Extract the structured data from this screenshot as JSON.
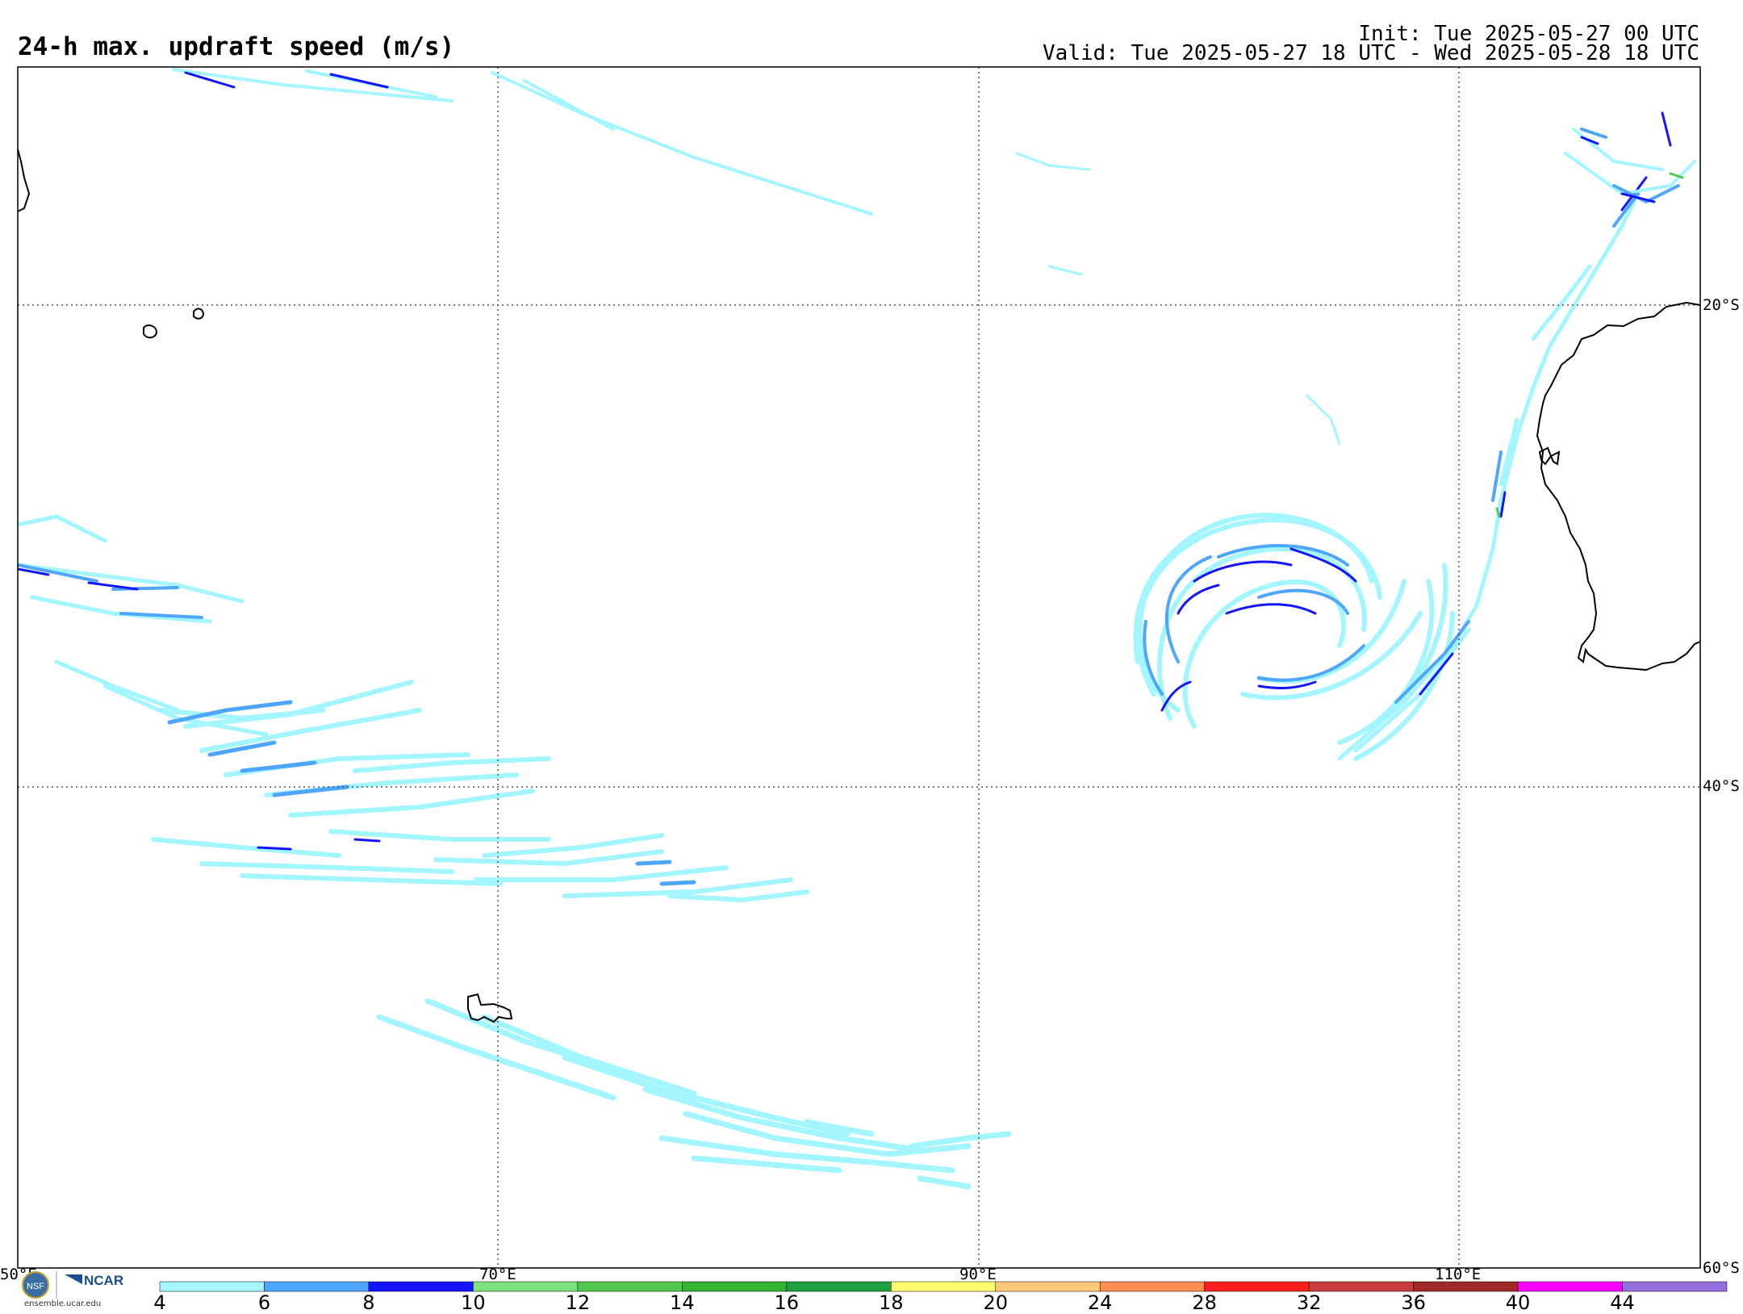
{
  "header": {
    "title": "24-h max. updraft speed (m/s)",
    "init": "Init: Tue 2025-05-27 00 UTC",
    "valid": "Valid: Tue 2025-05-27 18 UTC - Wed 2025-05-28 18 UTC"
  },
  "map": {
    "lat_labels": [
      "20°S",
      "40°S",
      "60°S"
    ],
    "lon_labels": [
      "50°E",
      "70°E",
      "90°E",
      "110°E"
    ],
    "grid": "dotted"
  },
  "colorbar": {
    "ticks": [
      "4",
      "6",
      "8",
      "10",
      "12",
      "14",
      "16",
      "18",
      "20",
      "24",
      "28",
      "32",
      "36",
      "40",
      "44"
    ],
    "colors": [
      "#a3f5ff",
      "#4fa6ff",
      "#1414ff",
      "#7ce37c",
      "#50c850",
      "#32b432",
      "#1f9f3f",
      "#ffff6e",
      "#ffc878",
      "#ff8c50",
      "#ff1e1e",
      "#c83c3c",
      "#a02828",
      "#ff00ff",
      "#9370db"
    ]
  },
  "branding": {
    "logo_text": "NCAR",
    "url": "ensemble.ucar.edu"
  }
}
